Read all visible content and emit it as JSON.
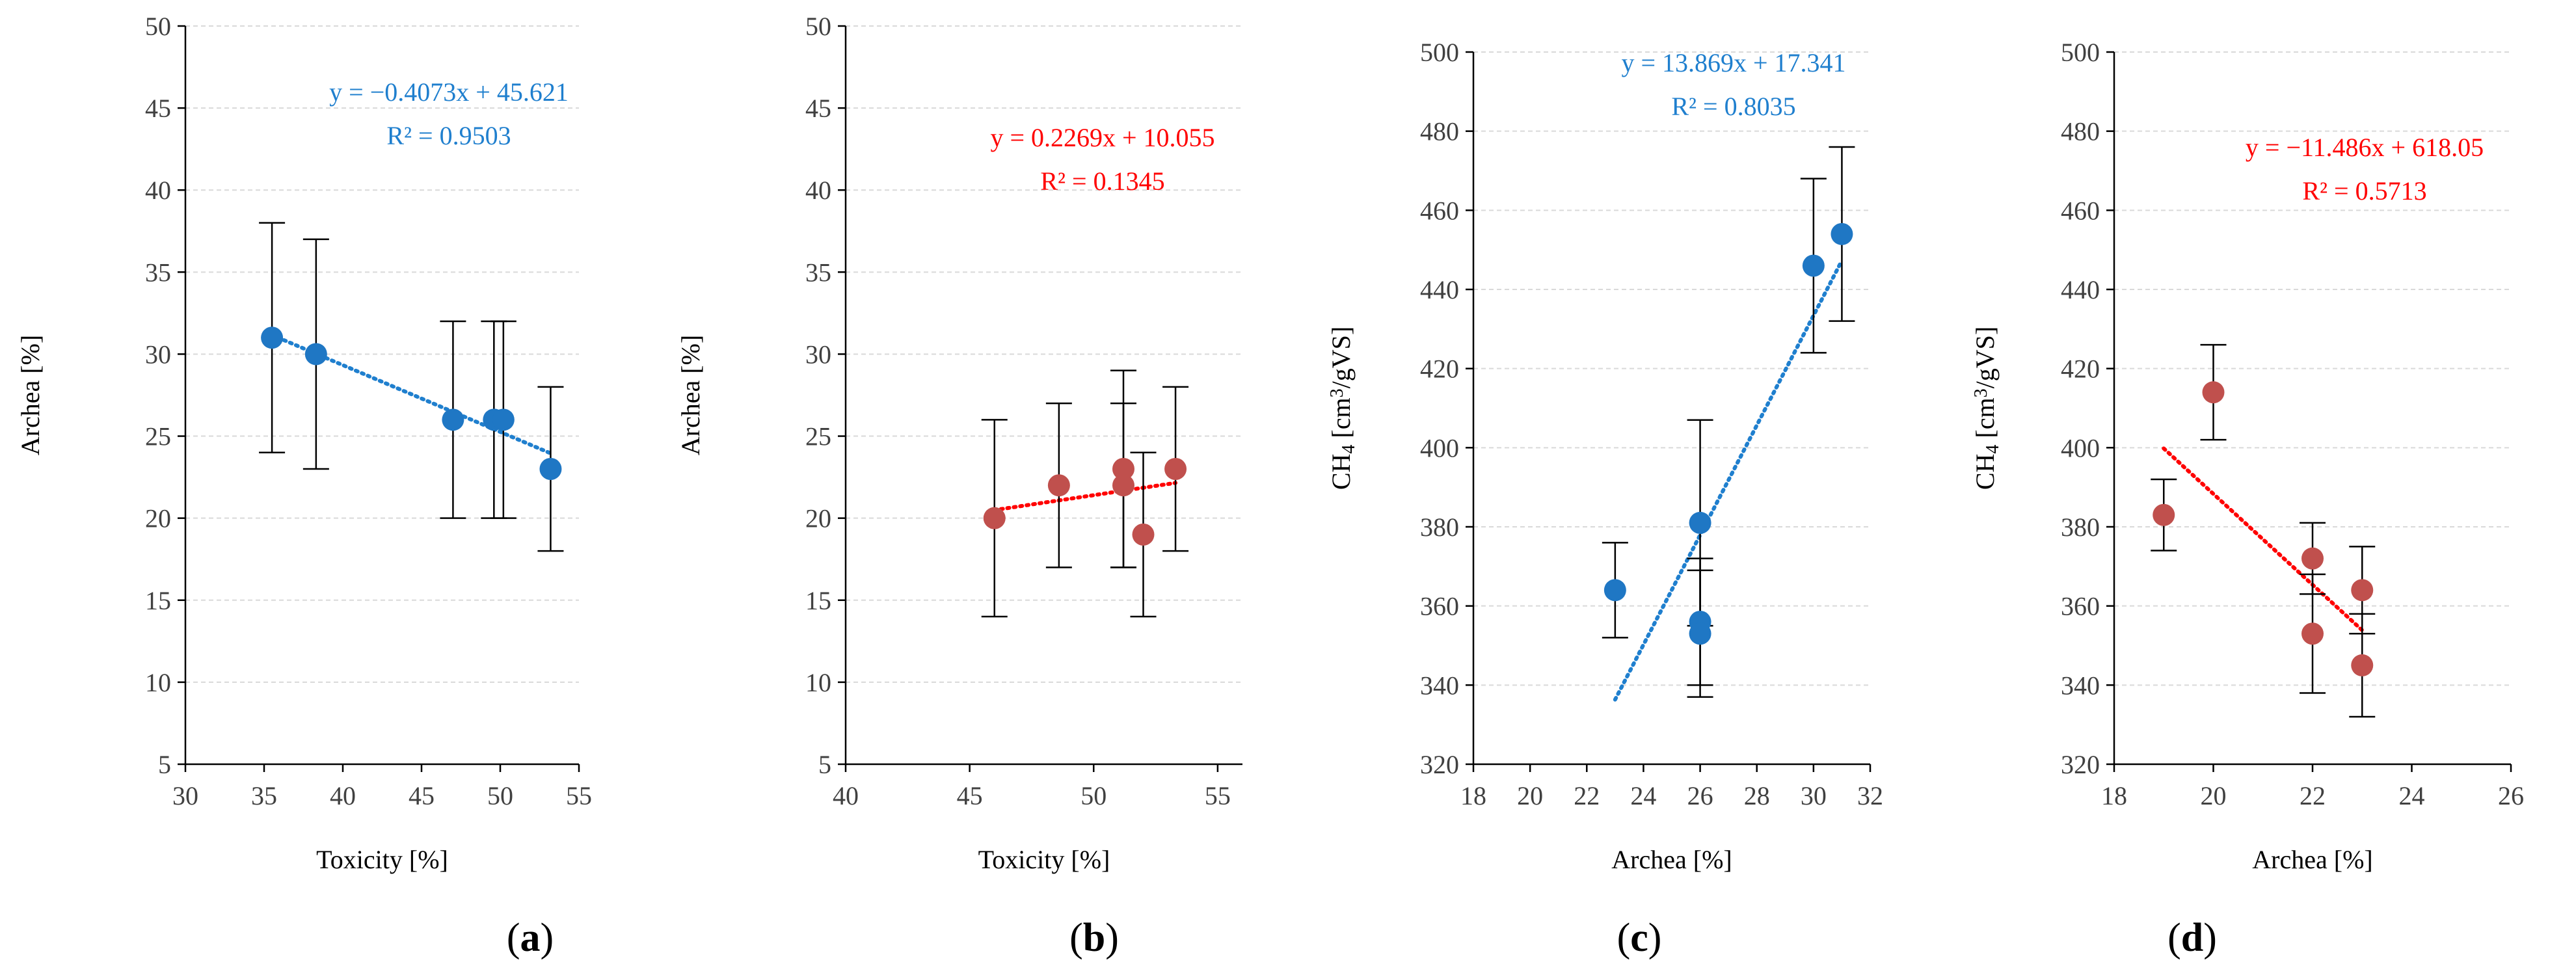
{
  "figure": {
    "panels": [
      "a",
      "b",
      "c",
      "d"
    ]
  },
  "chart_data": [
    {
      "id": "a",
      "panel_label": "a",
      "type": "scatter",
      "xlabel": "Toxicity [%]",
      "ylabel": "Archea [%]",
      "xlim": [
        30,
        55
      ],
      "ylim": [
        5,
        50
      ],
      "x_ticks": [
        30,
        35,
        40,
        45,
        50,
        55
      ],
      "y_ticks": [
        5,
        10,
        15,
        20,
        25,
        30,
        35,
        40,
        45,
        50
      ],
      "color": "#1f77c4",
      "trend_color": "#1f7fce",
      "points": [
        {
          "x": 35.5,
          "y": 31,
          "err": 7
        },
        {
          "x": 38.3,
          "y": 30,
          "err": 7
        },
        {
          "x": 47,
          "y": 26,
          "err": 6
        },
        {
          "x": 49.6,
          "y": 26,
          "err": 6
        },
        {
          "x": 50.2,
          "y": 26,
          "err": 6
        },
        {
          "x": 53.2,
          "y": 23,
          "err": 5
        }
      ],
      "trendline": {
        "slope": -0.4073,
        "intercept": 45.621,
        "x_range": [
          35.5,
          53.2
        ]
      },
      "equation": "y = −0.4073x + 45.621",
      "r2": "R² = 0.9503"
    },
    {
      "id": "b",
      "panel_label": "b",
      "type": "scatter",
      "xlabel": "Toxicity [%]",
      "ylabel": "Archea [%]",
      "xlim": [
        40,
        56
      ],
      "ylim": [
        5,
        50
      ],
      "x_ticks": [
        40,
        45,
        50,
        55
      ],
      "y_ticks": [
        5,
        10,
        15,
        20,
        25,
        30,
        35,
        40,
        45,
        50
      ],
      "color": "#c0504d",
      "trend_color": "#ff0000",
      "points": [
        {
          "x": 46,
          "y": 20,
          "err": 6
        },
        {
          "x": 48.6,
          "y": 22,
          "err": 5
        },
        {
          "x": 51.2,
          "y": 23,
          "err": 6
        },
        {
          "x": 51.2,
          "y": 22,
          "err": 5
        },
        {
          "x": 52,
          "y": 19,
          "err": 5
        },
        {
          "x": 53.3,
          "y": 23,
          "err": 5
        }
      ],
      "trendline": {
        "slope": 0.2269,
        "intercept": 10.055,
        "x_range": [
          46,
          53.3
        ]
      },
      "equation": "y = 0.2269x + 10.055",
      "r2": "R² = 0.1345"
    },
    {
      "id": "c",
      "panel_label": "c",
      "type": "scatter",
      "xlabel": "Archea [%]",
      "ylabel_main": "CH",
      "ylabel_sub": "4",
      "ylabel_unit": " [cm",
      "ylabel_sup": "3",
      "ylabel_end": "/gVS]",
      "xlim": [
        18,
        32
      ],
      "ylim": [
        320,
        500
      ],
      "x_ticks": [
        18,
        20,
        22,
        24,
        26,
        28,
        30,
        32
      ],
      "y_ticks": [
        320,
        340,
        360,
        380,
        400,
        420,
        440,
        460,
        480,
        500
      ],
      "color": "#1f77c4",
      "trend_color": "#1f7fce",
      "points": [
        {
          "x": 23,
          "y": 364,
          "err": 12
        },
        {
          "x": 26,
          "y": 381,
          "err": 26
        },
        {
          "x": 26,
          "y": 356,
          "err": 16
        },
        {
          "x": 26,
          "y": 353,
          "err": 16
        },
        {
          "x": 30,
          "y": 446,
          "err": 22
        },
        {
          "x": 31,
          "y": 454,
          "err": 22
        }
      ],
      "trendline": {
        "slope": 13.869,
        "intercept": 17.341,
        "x_range": [
          23,
          31
        ]
      },
      "equation": "y = 13.869x + 17.341",
      "r2": "R² = 0.8035"
    },
    {
      "id": "d",
      "panel_label": "d",
      "type": "scatter",
      "xlabel": "Archea [%]",
      "ylabel_main": "CH",
      "ylabel_sub": "4",
      "ylabel_unit": " [cm",
      "ylabel_sup": "3",
      "ylabel_end": "/gVS]",
      "xlim": [
        18,
        26
      ],
      "ylim": [
        320,
        500
      ],
      "x_ticks": [
        18,
        20,
        22,
        24,
        26
      ],
      "y_ticks": [
        320,
        340,
        360,
        380,
        400,
        420,
        440,
        460,
        480,
        500
      ],
      "color": "#c0504d",
      "trend_color": "#ff0000",
      "points": [
        {
          "x": 19,
          "y": 383,
          "err": 9
        },
        {
          "x": 20,
          "y": 414,
          "err": 12
        },
        {
          "x": 22,
          "y": 372,
          "err": 9
        },
        {
          "x": 22,
          "y": 353,
          "err": 15
        },
        {
          "x": 23,
          "y": 364,
          "err": 11
        },
        {
          "x": 23,
          "y": 345,
          "err": 13
        }
      ],
      "trendline": {
        "slope": -11.486,
        "intercept": 618.05,
        "x_range": [
          19,
          23
        ]
      },
      "equation": "y = −11.486x + 618.05",
      "r2": "R² = 0.5713"
    }
  ]
}
